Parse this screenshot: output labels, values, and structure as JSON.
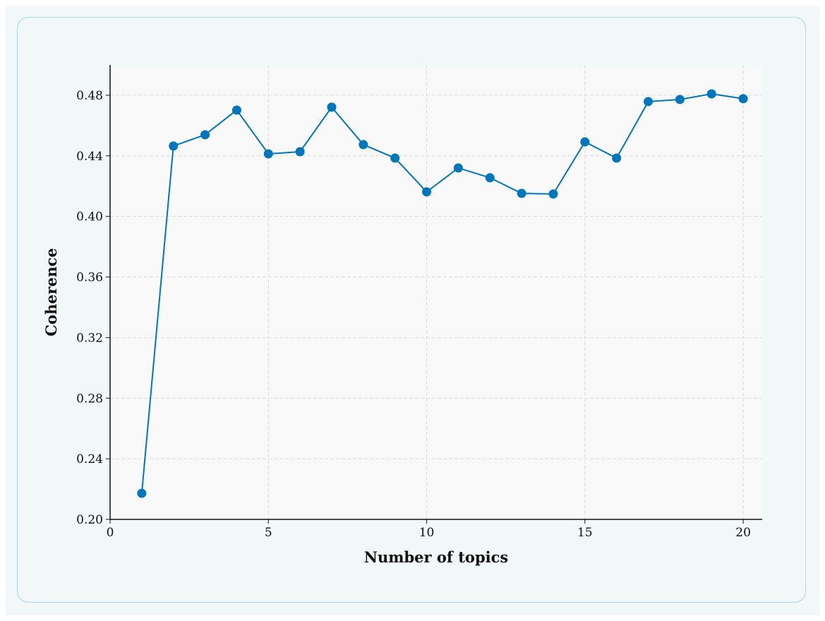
{
  "chart_data": {
    "type": "line",
    "x_label": "Number of topics",
    "y_label": "Coherence",
    "x": [
      1,
      2,
      3,
      4,
      5,
      6,
      7,
      8,
      9,
      10,
      11,
      12,
      13,
      14,
      15,
      16,
      17,
      18,
      19,
      20
    ],
    "series": [
      {
        "name": "Coherence",
        "color": "#0077bb",
        "values": [
          0.2172,
          0.4465,
          0.4539,
          0.4702,
          0.4413,
          0.4427,
          0.4721,
          0.4474,
          0.4385,
          0.4162,
          0.432,
          0.4255,
          0.4152,
          0.4148,
          0.4492,
          0.4385,
          0.4758,
          0.4772,
          0.4809,
          0.4777
        ]
      }
    ],
    "xlim": [
      0,
      20.6
    ],
    "ylim": [
      0.2,
      0.5
    ],
    "xticks": [
      0,
      5,
      10,
      15,
      20
    ],
    "yticks": [
      {
        "value": 0.2,
        "label": "0.20"
      },
      {
        "value": 0.24,
        "label": "0.24"
      },
      {
        "value": 0.28,
        "label": "0.28"
      },
      {
        "value": 0.32,
        "label": "0.32"
      },
      {
        "value": 0.36,
        "label": "0.36"
      },
      {
        "value": 0.4,
        "label": "0.40"
      },
      {
        "value": 0.44,
        "label": "0.44"
      },
      {
        "value": 0.48,
        "label": "0.48"
      }
    ],
    "grid": true
  }
}
